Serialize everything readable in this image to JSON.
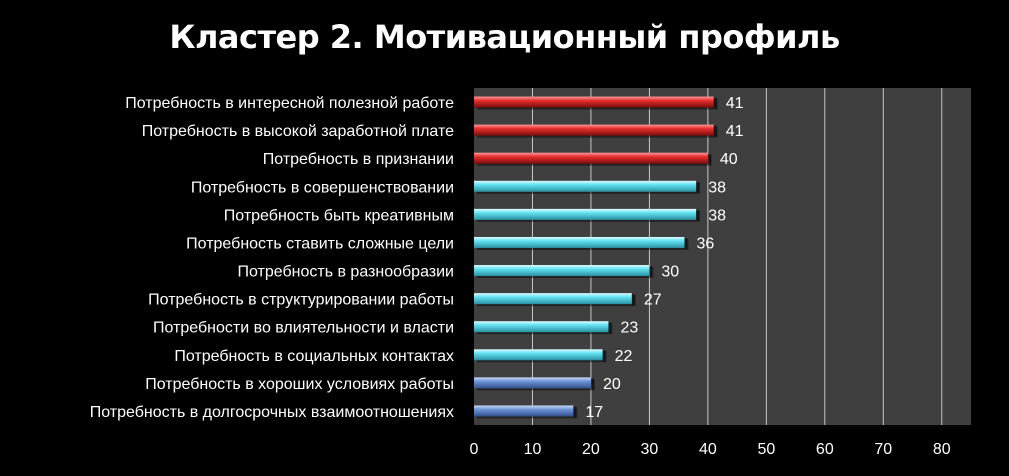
{
  "chart_data": {
    "type": "bar",
    "orientation": "horizontal",
    "title": "Кластер 2. Мотивационный профиль",
    "categories": [
      "Потребность в  интересной полезной работе",
      "Потребность в высокой заработной плате",
      "Потребность в признании",
      "Потребность в совершенствовании",
      "Потребность быть креативным",
      "Потребность ставить сложные цели",
      "Потребность в разнообразии",
      "Потребность в структурировании работы",
      "Потребности во влиятельности и власти",
      "Потребность в социальных контактах",
      "Потребность в хороших условиях работы",
      "Потребность в  долгосрочных взаимоотношениях"
    ],
    "values": [
      41,
      41,
      40,
      38,
      38,
      36,
      30,
      27,
      23,
      22,
      20,
      17
    ],
    "bar_colors": [
      "#e02020",
      "#e02020",
      "#e02020",
      "#5fe0ee",
      "#5fe0ee",
      "#5fe0ee",
      "#5fe0ee",
      "#5fe0ee",
      "#5fe0ee",
      "#5fe0ee",
      "#6b93d6",
      "#6b93d6"
    ],
    "x_ticks": [
      "0",
      "10",
      "20",
      "30",
      "40",
      "50",
      "60",
      "70",
      "80"
    ],
    "xlim": [
      0,
      85
    ],
    "grid": true,
    "plot_background": "#3f3f3f",
    "legend": "none"
  }
}
